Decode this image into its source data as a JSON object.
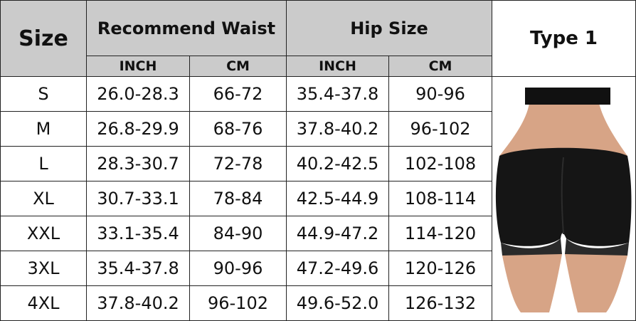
{
  "header": {
    "size": "Size",
    "waist": "Recommend Waist",
    "hip": "Hip Size",
    "type": "Type 1",
    "units": [
      "INCH",
      "CM",
      "INCH",
      "CM"
    ]
  },
  "table": {
    "rows": [
      [
        "S",
        "26.0-28.3",
        "66-72",
        "35.4-37.8",
        "90-96"
      ],
      [
        "M",
        "26.8-29.9",
        "68-76",
        "37.8-40.2",
        "96-102"
      ],
      [
        "L",
        "28.3-30.7",
        "72-78",
        "40.2-42.5",
        "102-108"
      ],
      [
        "XL",
        "30.7-33.1",
        "78-84",
        "42.5-44.9",
        "108-114"
      ],
      [
        "XXL",
        "33.1-35.4",
        "84-90",
        "44.9-47.2",
        "114-120"
      ],
      [
        "3XL",
        "35.4-37.8",
        "90-96",
        "47.2-49.6",
        "120-126"
      ],
      [
        "4XL",
        "37.8-40.2",
        "96-102",
        "49.6-52.0",
        "126-132"
      ]
    ]
  }
}
